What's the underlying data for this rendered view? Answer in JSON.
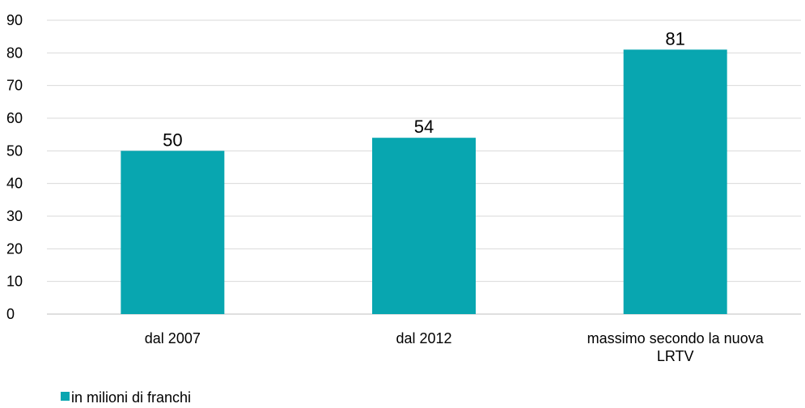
{
  "chart_data": {
    "type": "bar",
    "categories": [
      [
        "dal 2007"
      ],
      [
        "dal 2012"
      ],
      [
        "massimo secondo la nuova",
        "LRTV"
      ]
    ],
    "series": [
      {
        "name": "in milioni di franchi",
        "values": [
          50,
          54,
          81
        ]
      }
    ],
    "data_labels": [
      "50",
      "54",
      "81"
    ],
    "y_ticks": [
      "0",
      "10",
      "20",
      "30",
      "40",
      "50",
      "60",
      "70",
      "80",
      "90"
    ],
    "ylim": [
      0,
      90
    ],
    "grid": true,
    "legend_position": "bottom-left",
    "colors": {
      "bar": "#08a6b0",
      "grid": "#d9d9d9",
      "axis": "#bfbfbf"
    }
  }
}
